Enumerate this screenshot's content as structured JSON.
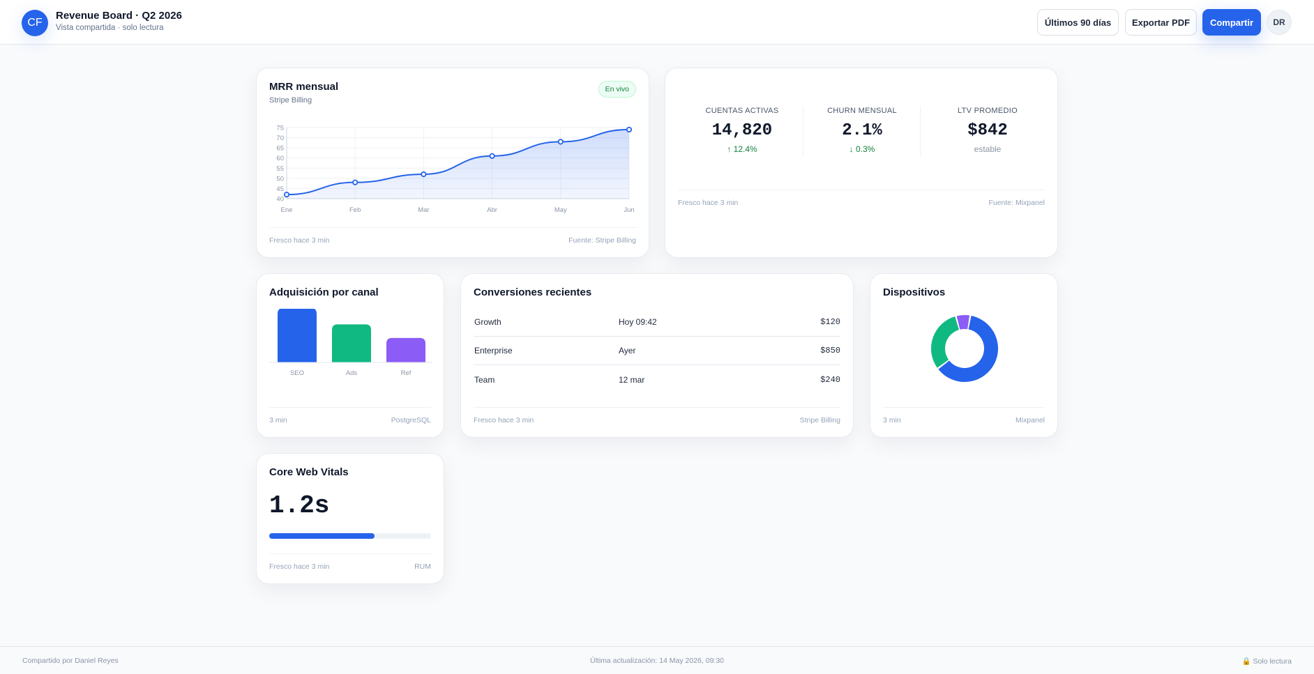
{
  "header": {
    "logo_initials": "CF",
    "title": "Revenue Board · Q2 2026",
    "subtitle": "Vista compartida · solo lectura",
    "buttons": {
      "range": "Últimos 90 días",
      "export": "Exportar PDF",
      "share": "Compartir"
    },
    "avatar_initials": "DR"
  },
  "mrr": {
    "title": "MRR mensual",
    "subtitle": "Stripe Billing",
    "badge": "En vivo",
    "foot_left": "Fresco hace 3 min",
    "foot_right": "Fuente: Stripe Billing"
  },
  "kpis": {
    "items": [
      {
        "label": "CUENTAS ACTIVAS",
        "value": "14,820",
        "delta": "↑ 12.4%"
      },
      {
        "label": "CHURN MENSUAL",
        "value": "2.1%",
        "delta": "↓ 0.3%"
      },
      {
        "label": "LTV PROMEDIO",
        "value": "$842",
        "delta": "estable"
      }
    ],
    "foot_left": "Fresco hace 3 min",
    "foot_right": "Fuente: Mixpanel"
  },
  "acquisition": {
    "title": "Adquisición por canal",
    "foot_left": "3 min",
    "foot_right": "PostgreSQL"
  },
  "conversions": {
    "title": "Conversiones recientes",
    "rows": [
      {
        "name": "Growth",
        "date": "Hoy 09:42",
        "amount": "$120"
      },
      {
        "name": "Enterprise",
        "date": "Ayer",
        "amount": "$850"
      },
      {
        "name": "Team",
        "date": "12 mar",
        "amount": "$240"
      }
    ],
    "foot_left": "Fresco hace 3 min",
    "foot_right": "Stripe Billing"
  },
  "devices": {
    "title": "Dispositivos",
    "foot_left": "3 min",
    "foot_right": "Mixpanel"
  },
  "vitals": {
    "title": "Core Web Vitals",
    "value": "1.2s",
    "progress": 0.65,
    "foot_left": "Fresco hace 3 min",
    "foot_right": "RUM"
  },
  "footer": {
    "left": "Compartido por Daniel Reyes",
    "center": "Última actualización: 14 May 2026, 09:30",
    "right": "🔒 Solo lectura"
  },
  "colors": {
    "accent": "#2563eb",
    "green": "#10b981",
    "purple": "#8b5cf6",
    "positive": "#15803d"
  },
  "chart_data": [
    {
      "type": "area",
      "title": "MRR mensual",
      "categories": [
        "Ene",
        "Feb",
        "Mar",
        "Abr",
        "May",
        "Jun"
      ],
      "values": [
        42,
        48,
        52,
        61,
        68,
        74
      ],
      "ylim": [
        40,
        75
      ],
      "yticks": [
        40,
        45,
        50,
        55,
        60,
        65,
        70,
        75
      ],
      "grid": true
    },
    {
      "type": "bar",
      "title": "Adquisición por canal",
      "categories": [
        "SEO",
        "Ads",
        "Ref"
      ],
      "values": [
        100,
        70,
        45
      ],
      "colors": [
        "#2563eb",
        "#10b981",
        "#8b5cf6"
      ]
    },
    {
      "type": "pie",
      "title": "Dispositivos",
      "values": [
        62,
        31,
        7
      ],
      "colors": [
        "#2563eb",
        "#10b981",
        "#8b5cf6"
      ]
    }
  ]
}
